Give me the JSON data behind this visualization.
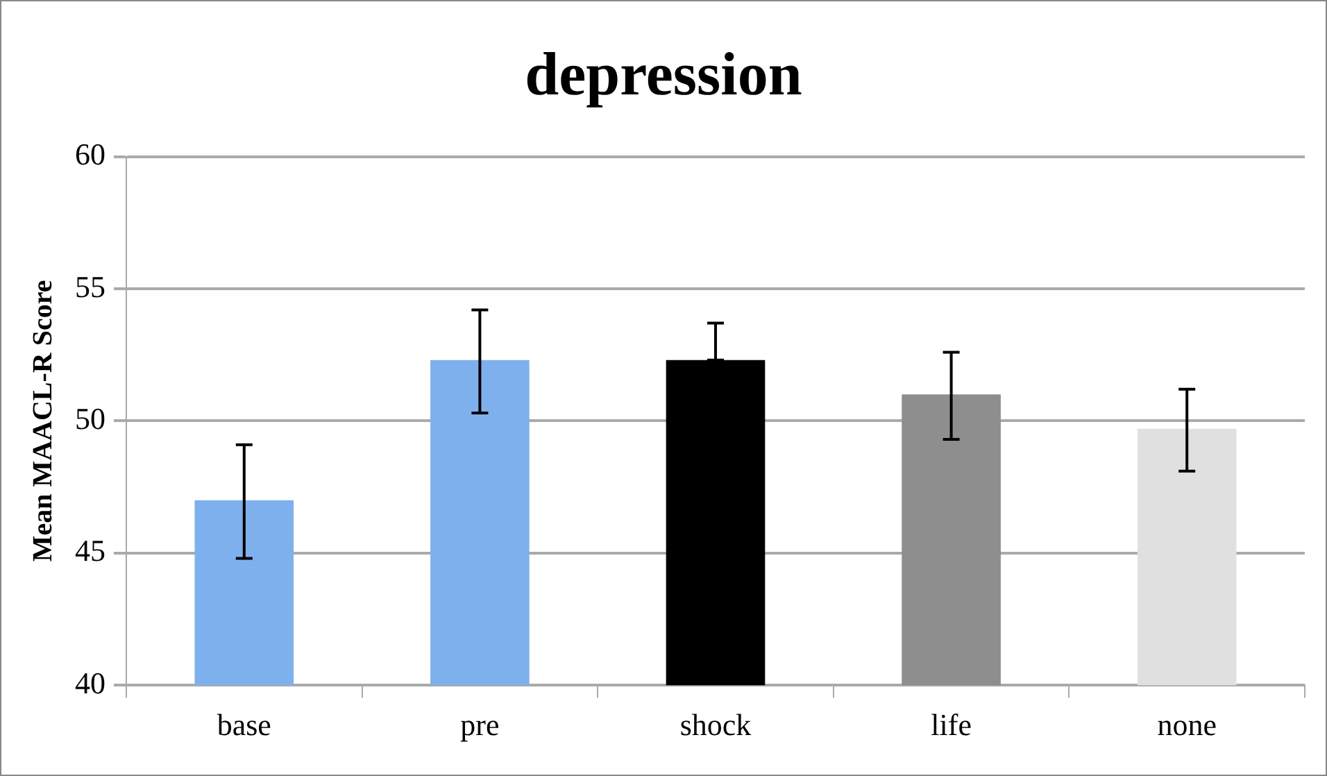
{
  "chart_data": {
    "type": "bar",
    "title": "depression",
    "ylabel": "Mean MAACL-R Score",
    "categories": [
      "base",
      "pre",
      "shock",
      "life",
      "none"
    ],
    "values": [
      47.0,
      52.3,
      52.3,
      51.0,
      49.7
    ],
    "colors": [
      "#7fb0ee",
      "#7fb0ee",
      "#000000",
      "#8e8e8e",
      "#e0e0e0"
    ],
    "errors": [
      [
        44.8,
        49.1
      ],
      [
        50.3,
        54.2
      ],
      [
        52.3,
        53.7
      ],
      [
        49.3,
        52.6
      ],
      [
        48.1,
        51.2
      ]
    ],
    "ylim": [
      40,
      60
    ],
    "yticks": [
      40,
      45,
      50,
      55,
      60
    ],
    "grid": "y",
    "legend": false
  }
}
